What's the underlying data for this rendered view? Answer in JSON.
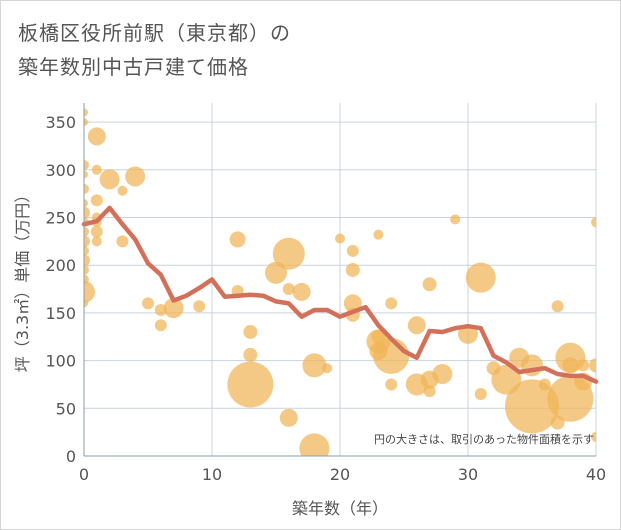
{
  "title_line1": "板橋区役所前駅（東京都）の",
  "title_line2": "築年数別中古戸建て価格",
  "chart_data": {
    "type": "scatter",
    "xlabel": "築年数（年）",
    "ylabel": "坪（3.3㎡）単価（万円）",
    "xlim": [
      0,
      40
    ],
    "ylim": [
      0,
      370
    ],
    "x_ticks": [
      0,
      10,
      20,
      30,
      40
    ],
    "y_ticks": [
      0,
      50,
      100,
      150,
      200,
      250,
      300,
      350
    ],
    "grid": true,
    "note": "円の大きさは、取引のあった物件面積を示す",
    "colors": {
      "bubble": "#f0b456",
      "line": "#d2705a",
      "grid": "#c9d3dc",
      "plot_bg": "#ffffff"
    },
    "scatter_points": [
      {
        "x": 0,
        "y": 360,
        "s": 4
      },
      {
        "x": 0,
        "y": 350,
        "s": 4
      },
      {
        "x": 0,
        "y": 305,
        "s": 5
      },
      {
        "x": 0,
        "y": 295,
        "s": 4
      },
      {
        "x": 0,
        "y": 280,
        "s": 5
      },
      {
        "x": 0,
        "y": 265,
        "s": 4
      },
      {
        "x": 0,
        "y": 255,
        "s": 6
      },
      {
        "x": 0,
        "y": 245,
        "s": 5
      },
      {
        "x": 0,
        "y": 235,
        "s": 5
      },
      {
        "x": 0,
        "y": 225,
        "s": 6
      },
      {
        "x": 0,
        "y": 215,
        "s": 5
      },
      {
        "x": 0,
        "y": 205,
        "s": 6
      },
      {
        "x": 0,
        "y": 195,
        "s": 5
      },
      {
        "x": 0,
        "y": 185,
        "s": 5
      },
      {
        "x": 0,
        "y": 172,
        "s": 11
      },
      {
        "x": 0,
        "y": 160,
        "s": 4
      },
      {
        "x": 1,
        "y": 335,
        "s": 9
      },
      {
        "x": 1,
        "y": 300,
        "s": 5
      },
      {
        "x": 1,
        "y": 268,
        "s": 6
      },
      {
        "x": 1,
        "y": 250,
        "s": 5
      },
      {
        "x": 1,
        "y": 245,
        "s": 5
      },
      {
        "x": 1,
        "y": 235,
        "s": 6
      },
      {
        "x": 1,
        "y": 225,
        "s": 5
      },
      {
        "x": 2,
        "y": 290,
        "s": 10
      },
      {
        "x": 3,
        "y": 278,
        "s": 5
      },
      {
        "x": 3,
        "y": 225,
        "s": 6
      },
      {
        "x": 4,
        "y": 293,
        "s": 10
      },
      {
        "x": 5,
        "y": 160,
        "s": 6
      },
      {
        "x": 6,
        "y": 153,
        "s": 6
      },
      {
        "x": 6,
        "y": 137,
        "s": 6
      },
      {
        "x": 7,
        "y": 155,
        "s": 10
      },
      {
        "x": 9,
        "y": 157,
        "s": 6
      },
      {
        "x": 12,
        "y": 227,
        "s": 8
      },
      {
        "x": 12,
        "y": 173,
        "s": 6
      },
      {
        "x": 13,
        "y": 130,
        "s": 7
      },
      {
        "x": 13,
        "y": 106,
        "s": 7
      },
      {
        "x": 13,
        "y": 75,
        "s": 23
      },
      {
        "x": 15,
        "y": 192,
        "s": 11
      },
      {
        "x": 16,
        "y": 212,
        "s": 16
      },
      {
        "x": 16,
        "y": 175,
        "s": 6
      },
      {
        "x": 16,
        "y": 40,
        "s": 9
      },
      {
        "x": 17,
        "y": 172,
        "s": 9
      },
      {
        "x": 18,
        "y": 95,
        "s": 12
      },
      {
        "x": 18,
        "y": 8,
        "s": 15
      },
      {
        "x": 19,
        "y": 92,
        "s": 5
      },
      {
        "x": 20,
        "y": 228,
        "s": 5
      },
      {
        "x": 21,
        "y": 215,
        "s": 6
      },
      {
        "x": 21,
        "y": 195,
        "s": 7
      },
      {
        "x": 21,
        "y": 160,
        "s": 9
      },
      {
        "x": 21,
        "y": 148,
        "s": 7
      },
      {
        "x": 23,
        "y": 232,
        "s": 5
      },
      {
        "x": 23,
        "y": 125,
        "s": 7
      },
      {
        "x": 23,
        "y": 120,
        "s": 12
      },
      {
        "x": 23,
        "y": 110,
        "s": 9
      },
      {
        "x": 24,
        "y": 160,
        "s": 6
      },
      {
        "x": 24,
        "y": 105,
        "s": 18
      },
      {
        "x": 24,
        "y": 75,
        "s": 6
      },
      {
        "x": 26,
        "y": 137,
        "s": 9
      },
      {
        "x": 26,
        "y": 75,
        "s": 11
      },
      {
        "x": 27,
        "y": 180,
        "s": 7
      },
      {
        "x": 27,
        "y": 80,
        "s": 9
      },
      {
        "x": 27,
        "y": 68,
        "s": 6
      },
      {
        "x": 28,
        "y": 86,
        "s": 10
      },
      {
        "x": 29,
        "y": 248,
        "s": 5
      },
      {
        "x": 30,
        "y": 128,
        "s": 10
      },
      {
        "x": 31,
        "y": 187,
        "s": 15
      },
      {
        "x": 31,
        "y": 65,
        "s": 6
      },
      {
        "x": 32,
        "y": 92,
        "s": 7
      },
      {
        "x": 33,
        "y": 80,
        "s": 15
      },
      {
        "x": 34,
        "y": 103,
        "s": 10
      },
      {
        "x": 35,
        "y": 95,
        "s": 11
      },
      {
        "x": 35,
        "y": 52,
        "s": 27
      },
      {
        "x": 36,
        "y": 75,
        "s": 6
      },
      {
        "x": 37,
        "y": 157,
        "s": 6
      },
      {
        "x": 37,
        "y": 35,
        "s": 7
      },
      {
        "x": 38,
        "y": 103,
        "s": 15
      },
      {
        "x": 38,
        "y": 95,
        "s": 8
      },
      {
        "x": 38,
        "y": 60,
        "s": 23
      },
      {
        "x": 39,
        "y": 95,
        "s": 6
      },
      {
        "x": 39,
        "y": 78,
        "s": 9
      },
      {
        "x": 40,
        "y": 245,
        "s": 5
      },
      {
        "x": 40,
        "y": 95,
        "s": 7
      },
      {
        "x": 40,
        "y": 20,
        "s": 5
      }
    ],
    "line_points": [
      {
        "x": 0,
        "y": 243
      },
      {
        "x": 1,
        "y": 246
      },
      {
        "x": 2,
        "y": 260
      },
      {
        "x": 3,
        "y": 243
      },
      {
        "x": 4,
        "y": 227
      },
      {
        "x": 5,
        "y": 202
      },
      {
        "x": 6,
        "y": 190
      },
      {
        "x": 7,
        "y": 163
      },
      {
        "x": 8,
        "y": 168
      },
      {
        "x": 9,
        "y": 176
      },
      {
        "x": 10,
        "y": 185
      },
      {
        "x": 11,
        "y": 167
      },
      {
        "x": 12,
        "y": 168
      },
      {
        "x": 13,
        "y": 169
      },
      {
        "x": 14,
        "y": 168
      },
      {
        "x": 15,
        "y": 162
      },
      {
        "x": 16,
        "y": 160
      },
      {
        "x": 17,
        "y": 146
      },
      {
        "x": 18,
        "y": 153
      },
      {
        "x": 19,
        "y": 153
      },
      {
        "x": 20,
        "y": 146
      },
      {
        "x": 21,
        "y": 151
      },
      {
        "x": 22,
        "y": 156
      },
      {
        "x": 23,
        "y": 137
      },
      {
        "x": 24,
        "y": 123
      },
      {
        "x": 25,
        "y": 110
      },
      {
        "x": 26,
        "y": 103
      },
      {
        "x": 27,
        "y": 131
      },
      {
        "x": 28,
        "y": 130
      },
      {
        "x": 29,
        "y": 134
      },
      {
        "x": 30,
        "y": 136
      },
      {
        "x": 31,
        "y": 134
      },
      {
        "x": 32,
        "y": 105
      },
      {
        "x": 33,
        "y": 98
      },
      {
        "x": 34,
        "y": 88
      },
      {
        "x": 35,
        "y": 90
      },
      {
        "x": 36,
        "y": 92
      },
      {
        "x": 37,
        "y": 86
      },
      {
        "x": 38,
        "y": 84
      },
      {
        "x": 39,
        "y": 84
      },
      {
        "x": 40,
        "y": 78
      }
    ]
  }
}
